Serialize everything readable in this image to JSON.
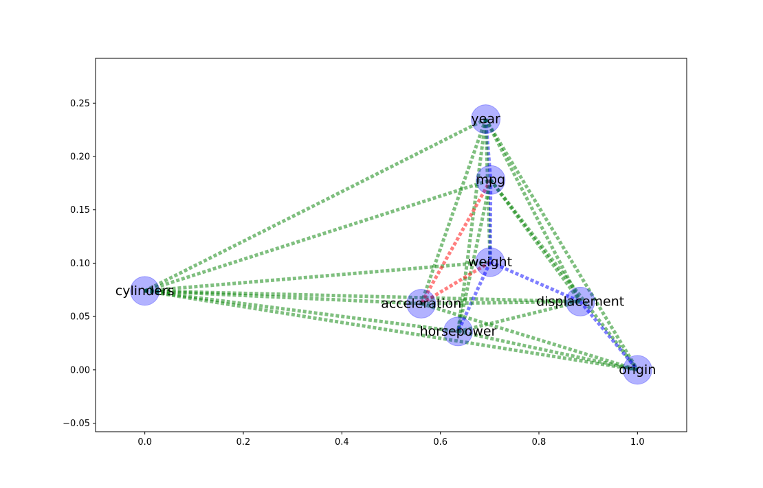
{
  "chart_data": {
    "type": "scatter",
    "subtype": "network-graph",
    "title": "",
    "xlabel": "",
    "ylabel": "",
    "xlim": [
      -0.1,
      1.1
    ],
    "ylim": [
      -0.058,
      0.292
    ],
    "x_ticks": [
      "0.0",
      "0.2",
      "0.4",
      "0.6",
      "0.8",
      "1.0"
    ],
    "x_tick_values": [
      0.0,
      0.2,
      0.4,
      0.6,
      0.8,
      1.0
    ],
    "y_ticks": [
      "−0.05",
      "0.00",
      "0.05",
      "0.10",
      "0.15",
      "0.20",
      "0.25"
    ],
    "y_tick_values": [
      -0.05,
      0.0,
      0.05,
      0.1,
      0.15,
      0.2,
      0.25
    ],
    "grid": false,
    "legend": "none",
    "node_color": "#0000ff",
    "nodes": [
      {
        "name": "cylinders",
        "x": 0.0,
        "y": 0.074
      },
      {
        "name": "year",
        "x": 0.692,
        "y": 0.235
      },
      {
        "name": "mpg",
        "x": 0.702,
        "y": 0.178
      },
      {
        "name": "weight",
        "x": 0.701,
        "y": 0.101
      },
      {
        "name": "acceleration",
        "x": 0.561,
        "y": 0.062
      },
      {
        "name": "displacement",
        "x": 0.884,
        "y": 0.064
      },
      {
        "name": "horsepower",
        "x": 0.636,
        "y": 0.036
      },
      {
        "name": "origin",
        "x": 1.0,
        "y": 0.0
      }
    ],
    "edge_colors": {
      "green": "#008000",
      "blue": "#0000ff",
      "red": "#ff0000"
    },
    "edges": [
      {
        "source": "cylinders",
        "target": "year",
        "color": "green"
      },
      {
        "source": "cylinders",
        "target": "mpg",
        "color": "green"
      },
      {
        "source": "cylinders",
        "target": "weight",
        "color": "green"
      },
      {
        "source": "cylinders",
        "target": "acceleration",
        "color": "green"
      },
      {
        "source": "cylinders",
        "target": "displacement",
        "color": "green"
      },
      {
        "source": "cylinders",
        "target": "horsepower",
        "color": "green"
      },
      {
        "source": "cylinders",
        "target": "origin",
        "color": "green"
      },
      {
        "source": "year",
        "target": "mpg",
        "color": "blue"
      },
      {
        "source": "year",
        "target": "weight",
        "color": "green"
      },
      {
        "source": "year",
        "target": "acceleration",
        "color": "green"
      },
      {
        "source": "year",
        "target": "displacement",
        "color": "green"
      },
      {
        "source": "year",
        "target": "horsepower",
        "color": "green"
      },
      {
        "source": "year",
        "target": "origin",
        "color": "green"
      },
      {
        "source": "mpg",
        "target": "weight",
        "color": "blue"
      },
      {
        "source": "mpg",
        "target": "acceleration",
        "color": "red"
      },
      {
        "source": "mpg",
        "target": "displacement",
        "color": "green"
      },
      {
        "source": "mpg",
        "target": "horsepower",
        "color": "green"
      },
      {
        "source": "mpg",
        "target": "origin",
        "color": "green"
      },
      {
        "source": "weight",
        "target": "acceleration",
        "color": "red"
      },
      {
        "source": "weight",
        "target": "displacement",
        "color": "blue"
      },
      {
        "source": "weight",
        "target": "horsepower",
        "color": "blue"
      },
      {
        "source": "acceleration",
        "target": "displacement",
        "color": "green"
      },
      {
        "source": "acceleration",
        "target": "origin",
        "color": "green"
      },
      {
        "source": "horsepower",
        "target": "displacement",
        "color": "green"
      },
      {
        "source": "horsepower",
        "target": "origin",
        "color": "green"
      },
      {
        "source": "displacement",
        "target": "origin",
        "color": "blue"
      }
    ]
  }
}
